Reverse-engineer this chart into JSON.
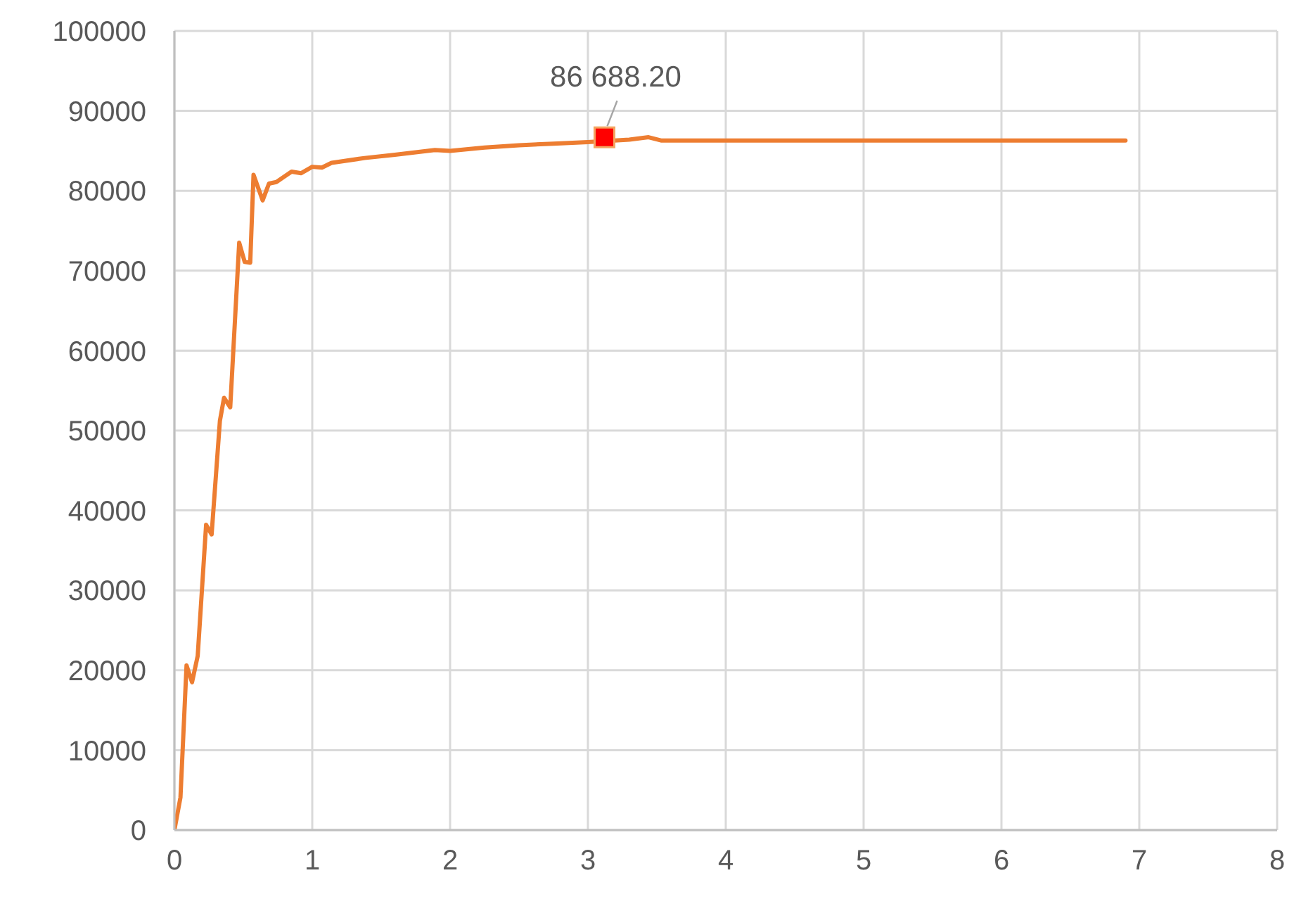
{
  "chart_data": {
    "type": "line",
    "xlim": [
      0,
      8
    ],
    "xticks": [
      0,
      1,
      2,
      3,
      4,
      5,
      6,
      7,
      8
    ],
    "ylim": [
      0,
      100000
    ],
    "yticks": [
      0,
      10000,
      20000,
      30000,
      40000,
      50000,
      60000,
      70000,
      80000,
      90000,
      100000
    ],
    "grid": true,
    "marker": "none",
    "line_style": "solid",
    "series": [
      {
        "color": "#ed7d31",
        "x": [
          0,
          0.044,
          0.088,
          0.128,
          0.169,
          0.23,
          0.27,
          0.33,
          0.36,
          0.405,
          0.47,
          0.51,
          0.55,
          0.574,
          0.64,
          0.686,
          0.74,
          0.85,
          0.92,
          1.0,
          1.07,
          1.14,
          1.38,
          1.6,
          1.89,
          2.0,
          2.25,
          2.5,
          2.75,
          3.0,
          3.3,
          3.44,
          3.53,
          4.0,
          5.0,
          6.0,
          6.9
        ],
        "values": [
          0,
          4100,
          20600,
          18500,
          21800,
          38200,
          37000,
          51200,
          54100,
          52900,
          73500,
          71100,
          71000,
          82000,
          78800,
          80900,
          81100,
          82400,
          82200,
          83000,
          82900,
          83500,
          84100,
          84500,
          85100,
          85000,
          85400,
          85700,
          85900,
          86100,
          86400,
          86700,
          86300,
          86300,
          86300,
          86300,
          86300
        ]
      },
      {
        "type": "scatter",
        "color": "#ff0000",
        "marker": "square",
        "x": [
          3.12
        ],
        "values": [
          86688.2
        ],
        "value_labels": [
          "86 688.20"
        ]
      }
    ]
  }
}
